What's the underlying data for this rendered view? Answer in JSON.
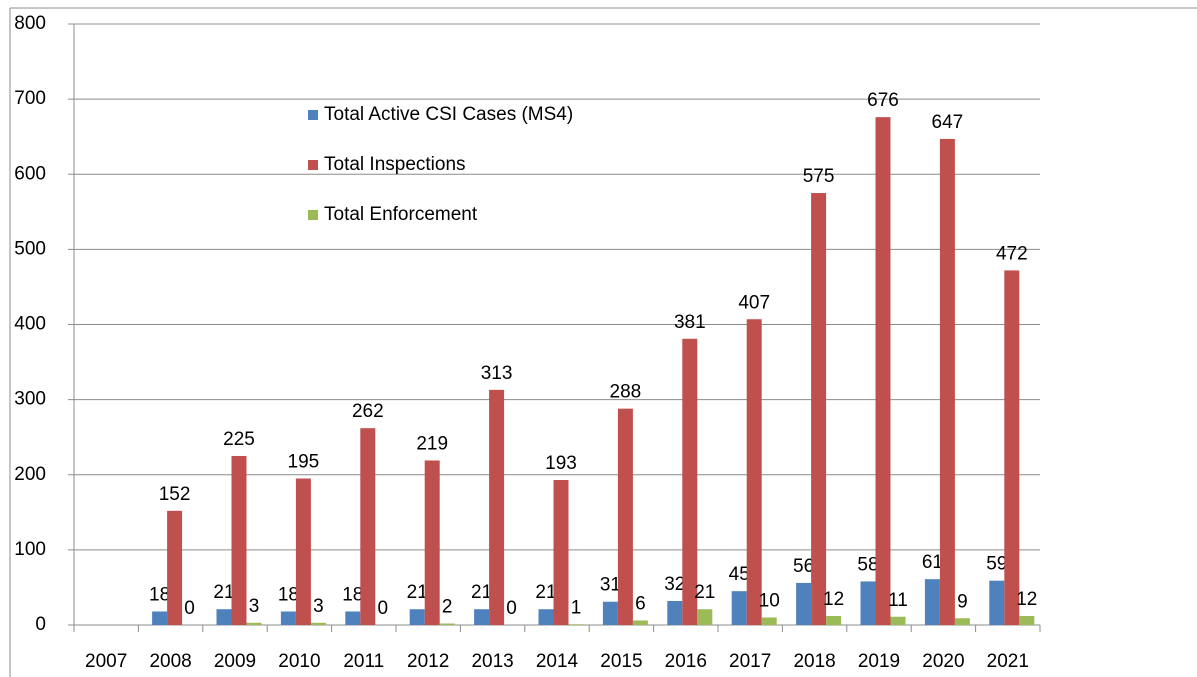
{
  "chart_data": {
    "type": "bar",
    "categories": [
      "2007",
      "2008",
      "2009",
      "2010",
      "2011",
      "2012",
      "2013",
      "2014",
      "2015",
      "2016",
      "2017",
      "2018",
      "2019",
      "2020",
      "2021"
    ],
    "series": [
      {
        "name": "Total Active CSI Cases (MS4)",
        "color": "#4f81bd",
        "values": [
          null,
          18,
          21,
          18,
          18,
          21,
          21,
          21,
          31,
          32,
          45,
          56,
          58,
          61,
          59
        ]
      },
      {
        "name": "Total Inspections",
        "color": "#c0504d",
        "values": [
          null,
          152,
          225,
          195,
          262,
          219,
          313,
          193,
          288,
          381,
          407,
          575,
          676,
          647,
          472
        ]
      },
      {
        "name": "Total Enforcement",
        "color": "#9bbb59",
        "values": [
          null,
          0,
          3,
          3,
          0,
          2,
          0,
          1,
          6,
          21,
          10,
          12,
          11,
          9,
          12
        ]
      }
    ],
    "ylim": [
      0,
      800
    ],
    "yticks": [
      0,
      100,
      200,
      300,
      400,
      500,
      600,
      700,
      800
    ],
    "grid": true,
    "legend": "top-center"
  }
}
